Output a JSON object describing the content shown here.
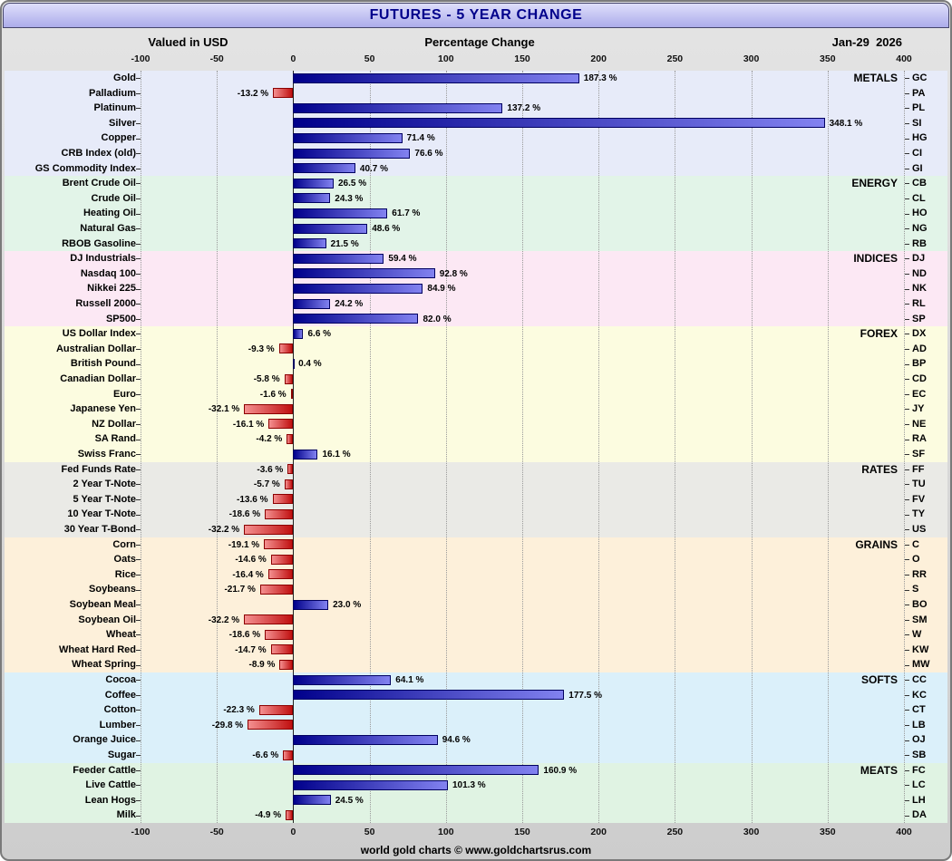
{
  "title": "FUTURES - 5 YEAR CHANGE",
  "header": {
    "left": "Valued in USD",
    "center": "Percentage Change",
    "right": "Jan-29  2026"
  },
  "footer": "world gold charts © www.goldchartsrus.com",
  "axis": {
    "min": -100,
    "max": 400,
    "ticks": [
      -100,
      -50,
      0,
      50,
      100,
      150,
      200,
      250,
      300,
      350,
      400
    ]
  },
  "colors": {
    "title_text": "#00008b",
    "positive_dark": "#00008b",
    "positive_light": "#8282f0",
    "positive_border": "#000060",
    "negative_dark": "#c01010",
    "negative_light": "#f49090",
    "negative_border": "#8b0000"
  },
  "chart_data": {
    "type": "bar",
    "orientation": "horizontal",
    "title": "FUTURES - 5 YEAR CHANGE",
    "xlabel": "Percentage Change",
    "unit": "%",
    "xlim": [
      -100,
      400
    ],
    "grid": true,
    "groups": [
      {
        "name": "METALS",
        "band_color": "#e7ebf9",
        "items": [
          {
            "label": "Gold",
            "value": 187.3,
            "code": "GC"
          },
          {
            "label": "Palladium",
            "value": -13.2,
            "code": "PA"
          },
          {
            "label": "Platinum",
            "value": 137.2,
            "code": "PL"
          },
          {
            "label": "Silver",
            "value": 348.1,
            "code": "SI"
          },
          {
            "label": "Copper",
            "value": 71.4,
            "code": "HG"
          },
          {
            "label": "CRB Index (old)",
            "value": 76.6,
            "code": "CI"
          },
          {
            "label": "GS Commodity Index",
            "value": 40.7,
            "code": "GI"
          }
        ]
      },
      {
        "name": "ENERGY",
        "band_color": "#e2f4e8",
        "items": [
          {
            "label": "Brent Crude Oil",
            "value": 26.5,
            "code": "CB"
          },
          {
            "label": "Crude Oil",
            "value": 24.3,
            "code": "CL"
          },
          {
            "label": "Heating Oil",
            "value": 61.7,
            "code": "HO"
          },
          {
            "label": "Natural Gas",
            "value": 48.6,
            "code": "NG"
          },
          {
            "label": "RBOB Gasoline",
            "value": 21.5,
            "code": "RB"
          }
        ]
      },
      {
        "name": "INDICES",
        "band_color": "#fce8f4",
        "items": [
          {
            "label": "DJ Industrials",
            "value": 59.4,
            "code": "DJ"
          },
          {
            "label": "Nasdaq 100",
            "value": 92.8,
            "code": "ND"
          },
          {
            "label": "Nikkei 225",
            "value": 84.9,
            "code": "NK"
          },
          {
            "label": "Russell 2000",
            "value": 24.2,
            "code": "RL"
          },
          {
            "label": "SP500",
            "value": 82.0,
            "code": "SP"
          }
        ]
      },
      {
        "name": "FOREX",
        "band_color": "#fcfce0",
        "items": [
          {
            "label": "US Dollar Index",
            "value": 6.6,
            "code": "DX"
          },
          {
            "label": "Australian Dollar",
            "value": -9.3,
            "code": "AD"
          },
          {
            "label": "British Pound",
            "value": 0.4,
            "code": "BP"
          },
          {
            "label": "Canadian Dollar",
            "value": -5.8,
            "code": "CD"
          },
          {
            "label": "Euro",
            "value": -1.6,
            "code": "EC"
          },
          {
            "label": "Japanese Yen",
            "value": -32.1,
            "code": "JY"
          },
          {
            "label": "NZ Dollar",
            "value": -16.1,
            "code": "NE"
          },
          {
            "label": "SA Rand",
            "value": -4.2,
            "code": "RA"
          },
          {
            "label": "Swiss Franc",
            "value": 16.1,
            "code": "SF"
          }
        ]
      },
      {
        "name": "RATES",
        "band_color": "#eaeae6",
        "items": [
          {
            "label": "Fed Funds Rate",
            "value": -3.6,
            "code": "FF"
          },
          {
            "label": "2 Year T-Note",
            "value": -5.7,
            "code": "TU"
          },
          {
            "label": "5 Year T-Note",
            "value": -13.6,
            "code": "FV"
          },
          {
            "label": "10 Year T-Note",
            "value": -18.6,
            "code": "TY"
          },
          {
            "label": "30 Year T-Bond",
            "value": -32.2,
            "code": "US"
          }
        ]
      },
      {
        "name": "GRAINS",
        "band_color": "#fdf0da",
        "items": [
          {
            "label": "Corn",
            "value": -19.1,
            "code": "C"
          },
          {
            "label": "Oats",
            "value": -14.6,
            "code": "O"
          },
          {
            "label": "Rice",
            "value": -16.4,
            "code": "RR"
          },
          {
            "label": "Soybeans",
            "value": -21.7,
            "code": "S"
          },
          {
            "label": "Soybean Meal",
            "value": 23.0,
            "code": "BO"
          },
          {
            "label": "Soybean Oil",
            "value": -32.2,
            "code": "SM"
          },
          {
            "label": "Wheat",
            "value": -18.6,
            "code": "W"
          },
          {
            "label": "Wheat Hard Red",
            "value": -14.7,
            "code": "KW"
          },
          {
            "label": "Wheat Spring",
            "value": -8.9,
            "code": "MW"
          }
        ]
      },
      {
        "name": "SOFTS",
        "band_color": "#dbf0fa",
        "items": [
          {
            "label": "Cocoa",
            "value": 64.1,
            "code": "CC"
          },
          {
            "label": "Coffee",
            "value": 177.5,
            "code": "KC"
          },
          {
            "label": "Cotton",
            "value": -22.3,
            "code": "CT"
          },
          {
            "label": "Lumber",
            "value": -29.8,
            "code": "LB"
          },
          {
            "label": "Orange Juice",
            "value": 94.6,
            "code": "OJ"
          },
          {
            "label": "Sugar",
            "value": -6.6,
            "code": "SB"
          }
        ]
      },
      {
        "name": "MEATS",
        "band_color": "#e0f3e3",
        "items": [
          {
            "label": "Feeder Cattle",
            "value": 160.9,
            "code": "FC"
          },
          {
            "label": "Live Cattle",
            "value": 101.3,
            "code": "LC"
          },
          {
            "label": "Lean Hogs",
            "value": 24.5,
            "code": "LH"
          },
          {
            "label": "Milk",
            "value": -4.9,
            "code": "DA"
          }
        ]
      }
    ]
  }
}
